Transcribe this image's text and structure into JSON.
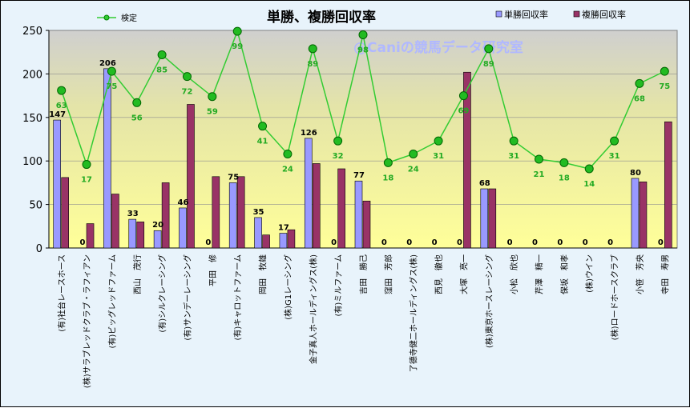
{
  "chart_data": {
    "type": "bar",
    "title": "単勝、複勝回収率",
    "watermark": "@Caniの競馬データ研究室",
    "ylim": [
      0,
      250
    ],
    "yticks": [
      0,
      50,
      100,
      150,
      200,
      250
    ],
    "categories": [
      "(有)社台レースホース",
      "(株)サラブレッドクラブ・ラフィアン",
      "(有)ビッグレッドファーム",
      "西山　茂行",
      "(有)シルクレーシング",
      "(有)サンデーレーシング",
      "平田　修",
      "(有)キャロットファーム",
      "岡田　牧雄",
      "(株)G1レーシング",
      "金子真人ホールディングス(株)",
      "(有)ミルファーム",
      "吉田　勝己",
      "窪田　芳郎",
      "了德寺健二ホールディングス(株)",
      "西見　徹也",
      "大塚　亮一",
      "(株)東京ホースレーシング",
      "小松　欣也",
      "芹澤　精一",
      "保坂　和孝",
      "(株)ウイン",
      "(株)ロードホースクラブ",
      "小笹　芳央",
      "寺田　寿男"
    ],
    "series": [
      {
        "name": "単勝回収率",
        "color": "#9999ff",
        "values": [
          147,
          0,
          206,
          33,
          20,
          46,
          0,
          75,
          35,
          17,
          126,
          0,
          77,
          0,
          0,
          0,
          0,
          68,
          0,
          0,
          0,
          0,
          0,
          80,
          0
        ]
      },
      {
        "name": "複勝回収率",
        "color": "#993366",
        "values": [
          81,
          28,
          62,
          30,
          75,
          165,
          82,
          82,
          15,
          21,
          97,
          91,
          54,
          0,
          0,
          0,
          202,
          68,
          0,
          0,
          0,
          0,
          0,
          76,
          145
        ]
      },
      {
        "name": "検定",
        "type": "line",
        "color": "#33cc33",
        "labels": [
          "63",
          "17",
          "75",
          "56",
          "85",
          "72",
          "59",
          "99",
          "41",
          "24",
          "89",
          "32",
          "98",
          "18",
          "24",
          "31",
          "69",
          "89",
          "31",
          "21",
          "18",
          "14",
          "31",
          "68",
          "75"
        ],
        "values": [
          181,
          96,
          203,
          167,
          222,
          197,
          174,
          249,
          140,
          108,
          229,
          123,
          245,
          98,
          108,
          123,
          175,
          229,
          123,
          102,
          98,
          91,
          123,
          189,
          203
        ]
      }
    ],
    "legend": {
      "line_label": "検定",
      "bar1_label": "単勝回収率",
      "bar2_label": "複勝回収率"
    }
  }
}
